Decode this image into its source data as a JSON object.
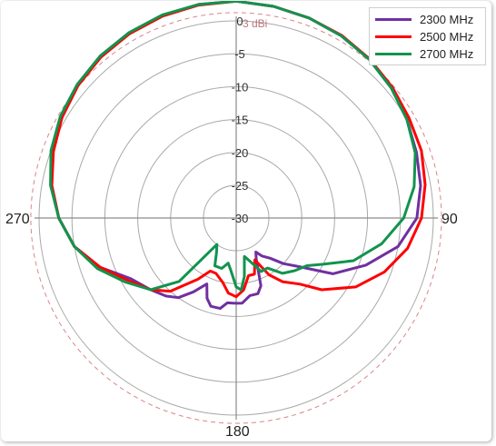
{
  "chart_data": {
    "type": "polar-line",
    "radial_ticks": [
      "0",
      "-5",
      "-10",
      "-15",
      "-20",
      "-25",
      "-30"
    ],
    "radial_range": [
      -30,
      0
    ],
    "angle_labels": {
      "0": "",
      "90": "90",
      "180": "180",
      "270": "270"
    },
    "reference": {
      "value": -3,
      "label": "-3 dBi",
      "color": "#d9868b"
    },
    "grid": true,
    "legend_position": "top-right",
    "series": [
      {
        "name": "2300 MHz",
        "color": "#7030a0",
        "points": [
          [
            0,
            0
          ],
          [
            10,
            -0.3
          ],
          [
            20,
            -0.6
          ],
          [
            30,
            -1
          ],
          [
            40,
            -1.5
          ],
          [
            50,
            -2.2
          ],
          [
            60,
            -3
          ],
          [
            70,
            -3.8
          ],
          [
            80,
            -4.5
          ],
          [
            90,
            -5.5
          ],
          [
            100,
            -8
          ],
          [
            110,
            -12
          ],
          [
            120,
            -16
          ],
          [
            128,
            -21
          ],
          [
            134,
            -23
          ],
          [
            140,
            -25
          ],
          [
            146,
            -26
          ],
          [
            150,
            -27
          ],
          [
            154,
            -26
          ],
          [
            160,
            -22
          ],
          [
            164,
            -21
          ],
          [
            170,
            -21
          ],
          [
            176,
            -20
          ],
          [
            180,
            -20
          ],
          [
            186,
            -20
          ],
          [
            190,
            -19
          ],
          [
            196,
            -19
          ],
          [
            200,
            -20
          ],
          [
            204,
            -22
          ],
          [
            210,
            -20
          ],
          [
            216,
            -18
          ],
          [
            222,
            -17
          ],
          [
            230,
            -16
          ],
          [
            240,
            -14.5
          ],
          [
            250,
            -11
          ],
          [
            260,
            -8
          ],
          [
            270,
            -6
          ],
          [
            280,
            -4.5
          ],
          [
            290,
            -3.3
          ],
          [
            300,
            -2.3
          ],
          [
            310,
            -1.5
          ],
          [
            320,
            -1
          ],
          [
            330,
            -0.5
          ],
          [
            340,
            -0.2
          ],
          [
            350,
            0
          ]
        ]
      },
      {
        "name": "2500 MHz",
        "color": "#ff0000",
        "points": [
          [
            0,
            0
          ],
          [
            10,
            -0.3
          ],
          [
            20,
            -0.6
          ],
          [
            30,
            -0.9
          ],
          [
            40,
            -1.4
          ],
          [
            50,
            -2
          ],
          [
            60,
            -2.6
          ],
          [
            70,
            -3
          ],
          [
            80,
            -3.8
          ],
          [
            90,
            -4.8
          ],
          [
            100,
            -6.5
          ],
          [
            110,
            -9
          ],
          [
            120,
            -12
          ],
          [
            130,
            -16
          ],
          [
            136,
            -19
          ],
          [
            144,
            -21
          ],
          [
            150,
            -23
          ],
          [
            156,
            -26
          ],
          [
            162,
            -24
          ],
          [
            168,
            -24
          ],
          [
            174,
            -22
          ],
          [
            180,
            -21
          ],
          [
            186,
            -21.5
          ],
          [
            192,
            -23
          ],
          [
            200,
            -24
          ],
          [
            206,
            -24
          ],
          [
            212,
            -22
          ],
          [
            222,
            -18
          ],
          [
            230,
            -16
          ],
          [
            240,
            -14
          ],
          [
            250,
            -11
          ],
          [
            260,
            -8
          ],
          [
            270,
            -6
          ],
          [
            280,
            -4.5
          ],
          [
            290,
            -3.4
          ],
          [
            300,
            -2.4
          ],
          [
            310,
            -1.6
          ],
          [
            320,
            -1
          ],
          [
            330,
            -0.6
          ],
          [
            340,
            -0.3
          ],
          [
            350,
            -0.1
          ]
        ]
      },
      {
        "name": "2700 MHz",
        "color": "#12934e",
        "points": [
          [
            0,
            0
          ],
          [
            10,
            -0.3
          ],
          [
            20,
            -0.6
          ],
          [
            30,
            -1
          ],
          [
            40,
            -1.5
          ],
          [
            50,
            -2.2
          ],
          [
            60,
            -3
          ],
          [
            70,
            -4
          ],
          [
            80,
            -5.5
          ],
          [
            90,
            -7.5
          ],
          [
            100,
            -10.5
          ],
          [
            110,
            -14
          ],
          [
            118,
            -18
          ],
          [
            124,
            -20
          ],
          [
            132,
            -21
          ],
          [
            140,
            -22
          ],
          [
            148,
            -24
          ],
          [
            155,
            -24
          ],
          [
            162,
            -26
          ],
          [
            168,
            -27
          ],
          [
            172,
            -24
          ],
          [
            176,
            -22
          ],
          [
            180,
            -22.5
          ],
          [
            186,
            -25
          ],
          [
            190,
            -26
          ],
          [
            196,
            -25
          ],
          [
            204,
            -25
          ],
          [
            210,
            -27
          ],
          [
            216,
            -28
          ],
          [
            222,
            -20
          ],
          [
            230,
            -16
          ],
          [
            240,
            -13.5
          ],
          [
            250,
            -10.5
          ],
          [
            260,
            -8
          ],
          [
            270,
            -6
          ],
          [
            280,
            -4.3
          ],
          [
            290,
            -3
          ],
          [
            300,
            -2.1
          ],
          [
            310,
            -1.4
          ],
          [
            320,
            -0.8
          ],
          [
            330,
            -0.4
          ],
          [
            340,
            -0.1
          ],
          [
            350,
            0
          ]
        ]
      }
    ]
  }
}
